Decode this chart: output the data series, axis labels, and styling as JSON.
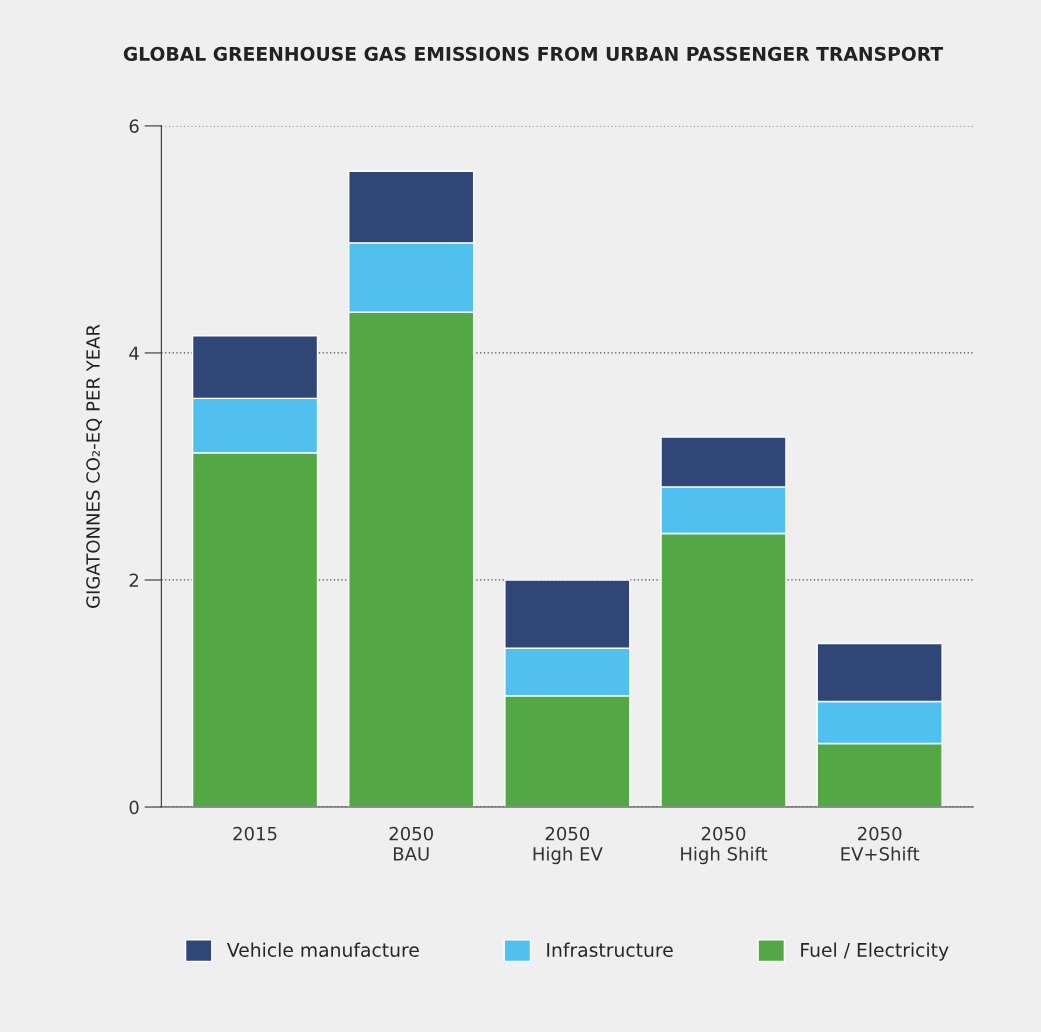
{
  "chart_data": {
    "type": "bar",
    "stacked": true,
    "title": "GLOBAL GREENHOUSE GAS EMISSIONS FROM URBAN PASSENGER TRANSPORT",
    "ylabel": "GIGATONNES CO₂-EQ PER YEAR",
    "categories": [
      "2015",
      "2050\nBAU",
      "2050\nHigh EV",
      "2050\nHigh Shift",
      "2050\nEV+Shift"
    ],
    "series": [
      {
        "name": "Fuel / Electricity",
        "color": "#53a744",
        "values": [
          3.12,
          4.36,
          0.98,
          2.41,
          0.56
        ]
      },
      {
        "name": "Infrastructure",
        "color": "#50c0ee",
        "values": [
          0.48,
          0.61,
          0.42,
          0.41,
          0.37
        ]
      },
      {
        "name": "Vehicle manufacture",
        "color": "#2f4677",
        "values": [
          0.55,
          0.63,
          0.6,
          0.44,
          0.51
        ]
      }
    ],
    "ylim": [
      0,
      6
    ],
    "yticks": [
      0,
      2,
      4,
      6
    ],
    "grid": "y",
    "legend": "bottom"
  }
}
